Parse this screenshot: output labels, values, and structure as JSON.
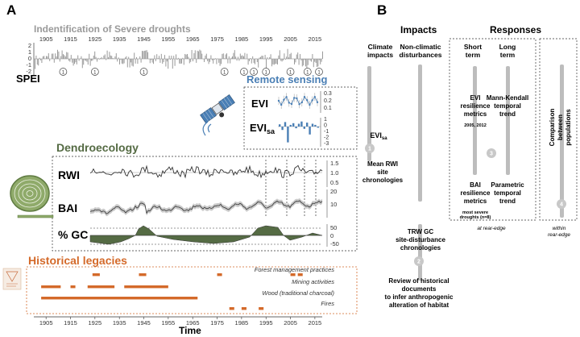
{
  "panelA": {
    "letter": "A",
    "droughts": {
      "title": "Indentification of Severe droughts",
      "years": [
        "1905",
        "1915",
        "1925",
        "1935",
        "1945",
        "1955",
        "1965",
        "1975",
        "1985",
        "1995",
        "2005",
        "2015"
      ],
      "spei_label": "SPEI",
      "yticks": [
        "2",
        "1",
        "0",
        "-1",
        "-2"
      ],
      "circle_labels": [
        "1",
        "1",
        "1",
        "1",
        "1",
        "1",
        "1",
        "1",
        "1",
        "1"
      ]
    },
    "remote": {
      "title": "Remote sensing",
      "evi_label": "EVI",
      "evisa_label": "EVI",
      "evisa_sub": "sa",
      "evi_ticks": [
        "0.3",
        "0.2",
        "0.1"
      ],
      "evisa_ticks": [
        "1",
        "0",
        "-1",
        "-2",
        "-3"
      ]
    },
    "dendro": {
      "title": "Dendroecology",
      "rwi_label": "RWI",
      "rwi_ticks": [
        "1.5",
        "1.0",
        "0.5"
      ],
      "bai_label": "BAI",
      "bai_ticks": [
        "20",
        "10"
      ],
      "gc_label": "% GC",
      "gc_ticks": [
        "50",
        "0",
        "-50"
      ]
    },
    "legacies": {
      "title": "Historical legacies",
      "rows": [
        "Forest management practices",
        "Mining activities",
        "Wood (traditional charcoal)",
        "Fires"
      ],
      "years": [
        "1905",
        "1915",
        "1925",
        "1935",
        "1945",
        "1955",
        "1965",
        "1975",
        "1985",
        "1995",
        "2005",
        "2015"
      ],
      "time_label": "Time"
    }
  },
  "panelB": {
    "letter": "B",
    "impacts_header": "Impacts",
    "responses_header": "Responses",
    "climate": [
      "Climate",
      "impacts"
    ],
    "nonclimatic": [
      "Non-climatic",
      "disturbances"
    ],
    "evisa_main": "EVI",
    "evisa_sub": "sa",
    "rwi_chron": [
      "Mean RWI",
      "site",
      "chronologies"
    ],
    "trw_chron": [
      "TRW    GC",
      "site-disturbance",
      "chronologies"
    ],
    "review": [
      "Review of historical",
      "documents",
      "to infer anthropogenic",
      "alteration of habitat"
    ],
    "short_term": [
      "Short",
      "term"
    ],
    "long_term": [
      "Long",
      "term"
    ],
    "evi_resilience": [
      "EVI",
      "resilience",
      "metrics"
    ],
    "evi_years": "2005, 2012",
    "mann_kendall": [
      "Mann-Kendall",
      "temporal",
      "trend"
    ],
    "bai_resilience": [
      "BAI",
      "resilience",
      "metrics"
    ],
    "bai_note": [
      "most severe",
      "droughts (n=8)"
    ],
    "parametric": [
      "Parametric",
      "temporal",
      "trend"
    ],
    "comparison": [
      "Comparison",
      "between",
      "populations"
    ],
    "at_rear_edge": "at rear-edge",
    "within": "within",
    "rear_edge": "rear-edge",
    "badges": [
      "1",
      "2",
      "3",
      "4"
    ]
  },
  "colors": {
    "gray_bar": "#9a9a9a",
    "blue": "#4a7fb5",
    "green": "#556b44",
    "orange": "#d46a2a",
    "badge": "#bdbdbd"
  }
}
